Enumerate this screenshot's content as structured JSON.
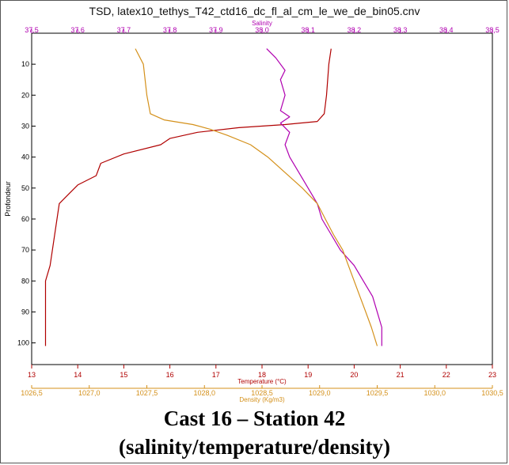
{
  "chart_data": {
    "type": "line",
    "title": "TSD, latex10_tethys_T42_ctd16_dc_fl_al_cm_le_we_de_bin05.cnv",
    "ylabel": "Profondeur",
    "ylim": [
      0,
      107
    ],
    "y_ticks": [
      10,
      20,
      30,
      40,
      50,
      60,
      70,
      80,
      90,
      100
    ],
    "y_reversed": true,
    "grid": false,
    "axes": {
      "salinity": {
        "label": "Salinity",
        "position": "top",
        "range": [
          37.5,
          38.5
        ],
        "ticks": [
          "37,5",
          "37,6",
          "37,7",
          "37,8",
          "37,9",
          "38,0",
          "38,1",
          "38,2",
          "38,3",
          "38,4",
          "38,5"
        ],
        "color": "#b000b0"
      },
      "temperature": {
        "label": "Temperature (°C)",
        "position": "bottom",
        "range": [
          13,
          23
        ],
        "ticks": [
          "13",
          "14",
          "15",
          "16",
          "17",
          "18",
          "19",
          "20",
          "21",
          "22",
          "23"
        ],
        "color": "#b00000"
      },
      "density": {
        "label": "Density (Kg/m3)",
        "position": "bottom-secondary",
        "range": [
          1026.5,
          1030.5
        ],
        "ticks": [
          "1026,5",
          "1027,0",
          "1027,5",
          "1028,0",
          "1028,5",
          "1029,0",
          "1029,5",
          "1030,0",
          "1030,5"
        ],
        "color": "#d4901a"
      }
    },
    "series": [
      {
        "name": "Temperature (°C)",
        "axis": "temperature",
        "color": "#b00000",
        "points": [
          [
            19.5,
            5
          ],
          [
            19.45,
            10
          ],
          [
            19.4,
            20
          ],
          [
            19.35,
            26
          ],
          [
            19.2,
            28.5
          ],
          [
            18.5,
            29.5
          ],
          [
            17.5,
            30.5
          ],
          [
            16.6,
            32
          ],
          [
            16.0,
            34
          ],
          [
            15.8,
            36
          ],
          [
            15.0,
            39
          ],
          [
            14.5,
            42
          ],
          [
            14.4,
            46
          ],
          [
            14.0,
            49
          ],
          [
            13.8,
            52
          ],
          [
            13.6,
            55
          ],
          [
            13.5,
            65
          ],
          [
            13.4,
            75
          ],
          [
            13.3,
            80
          ],
          [
            13.3,
            101
          ]
        ]
      },
      {
        "name": "Salinity",
        "axis": "salinity",
        "color": "#b000b0",
        "points": [
          [
            38.01,
            5
          ],
          [
            38.03,
            8
          ],
          [
            38.05,
            12
          ],
          [
            38.04,
            15
          ],
          [
            38.05,
            20
          ],
          [
            38.04,
            25
          ],
          [
            38.06,
            27
          ],
          [
            38.04,
            29
          ],
          [
            38.06,
            32
          ],
          [
            38.05,
            36
          ],
          [
            38.06,
            40
          ],
          [
            38.08,
            45
          ],
          [
            38.1,
            50
          ],
          [
            38.12,
            55
          ],
          [
            38.13,
            60
          ],
          [
            38.15,
            65
          ],
          [
            38.17,
            70
          ],
          [
            38.2,
            75
          ],
          [
            38.22,
            80
          ],
          [
            38.24,
            85
          ],
          [
            38.25,
            90
          ],
          [
            38.26,
            95
          ],
          [
            38.26,
            101
          ]
        ]
      },
      {
        "name": "Density (Kg/m3)",
        "axis": "density",
        "color": "#d4901a",
        "points": [
          [
            1027.4,
            5
          ],
          [
            1027.47,
            10
          ],
          [
            1027.5,
            20
          ],
          [
            1027.53,
            26
          ],
          [
            1027.65,
            28
          ],
          [
            1027.9,
            29.5
          ],
          [
            1028.05,
            31
          ],
          [
            1028.2,
            33
          ],
          [
            1028.4,
            36
          ],
          [
            1028.55,
            40
          ],
          [
            1028.7,
            45
          ],
          [
            1028.85,
            50
          ],
          [
            1028.98,
            55
          ],
          [
            1029.05,
            60
          ],
          [
            1029.12,
            65
          ],
          [
            1029.2,
            70
          ],
          [
            1029.25,
            75
          ],
          [
            1029.3,
            80
          ],
          [
            1029.35,
            85
          ],
          [
            1029.4,
            90
          ],
          [
            1029.45,
            95
          ],
          [
            1029.5,
            101
          ]
        ]
      }
    ]
  },
  "caption": {
    "line1": "Cast 16 – Station  42",
    "line2": "(salinity/temperature/density)"
  }
}
